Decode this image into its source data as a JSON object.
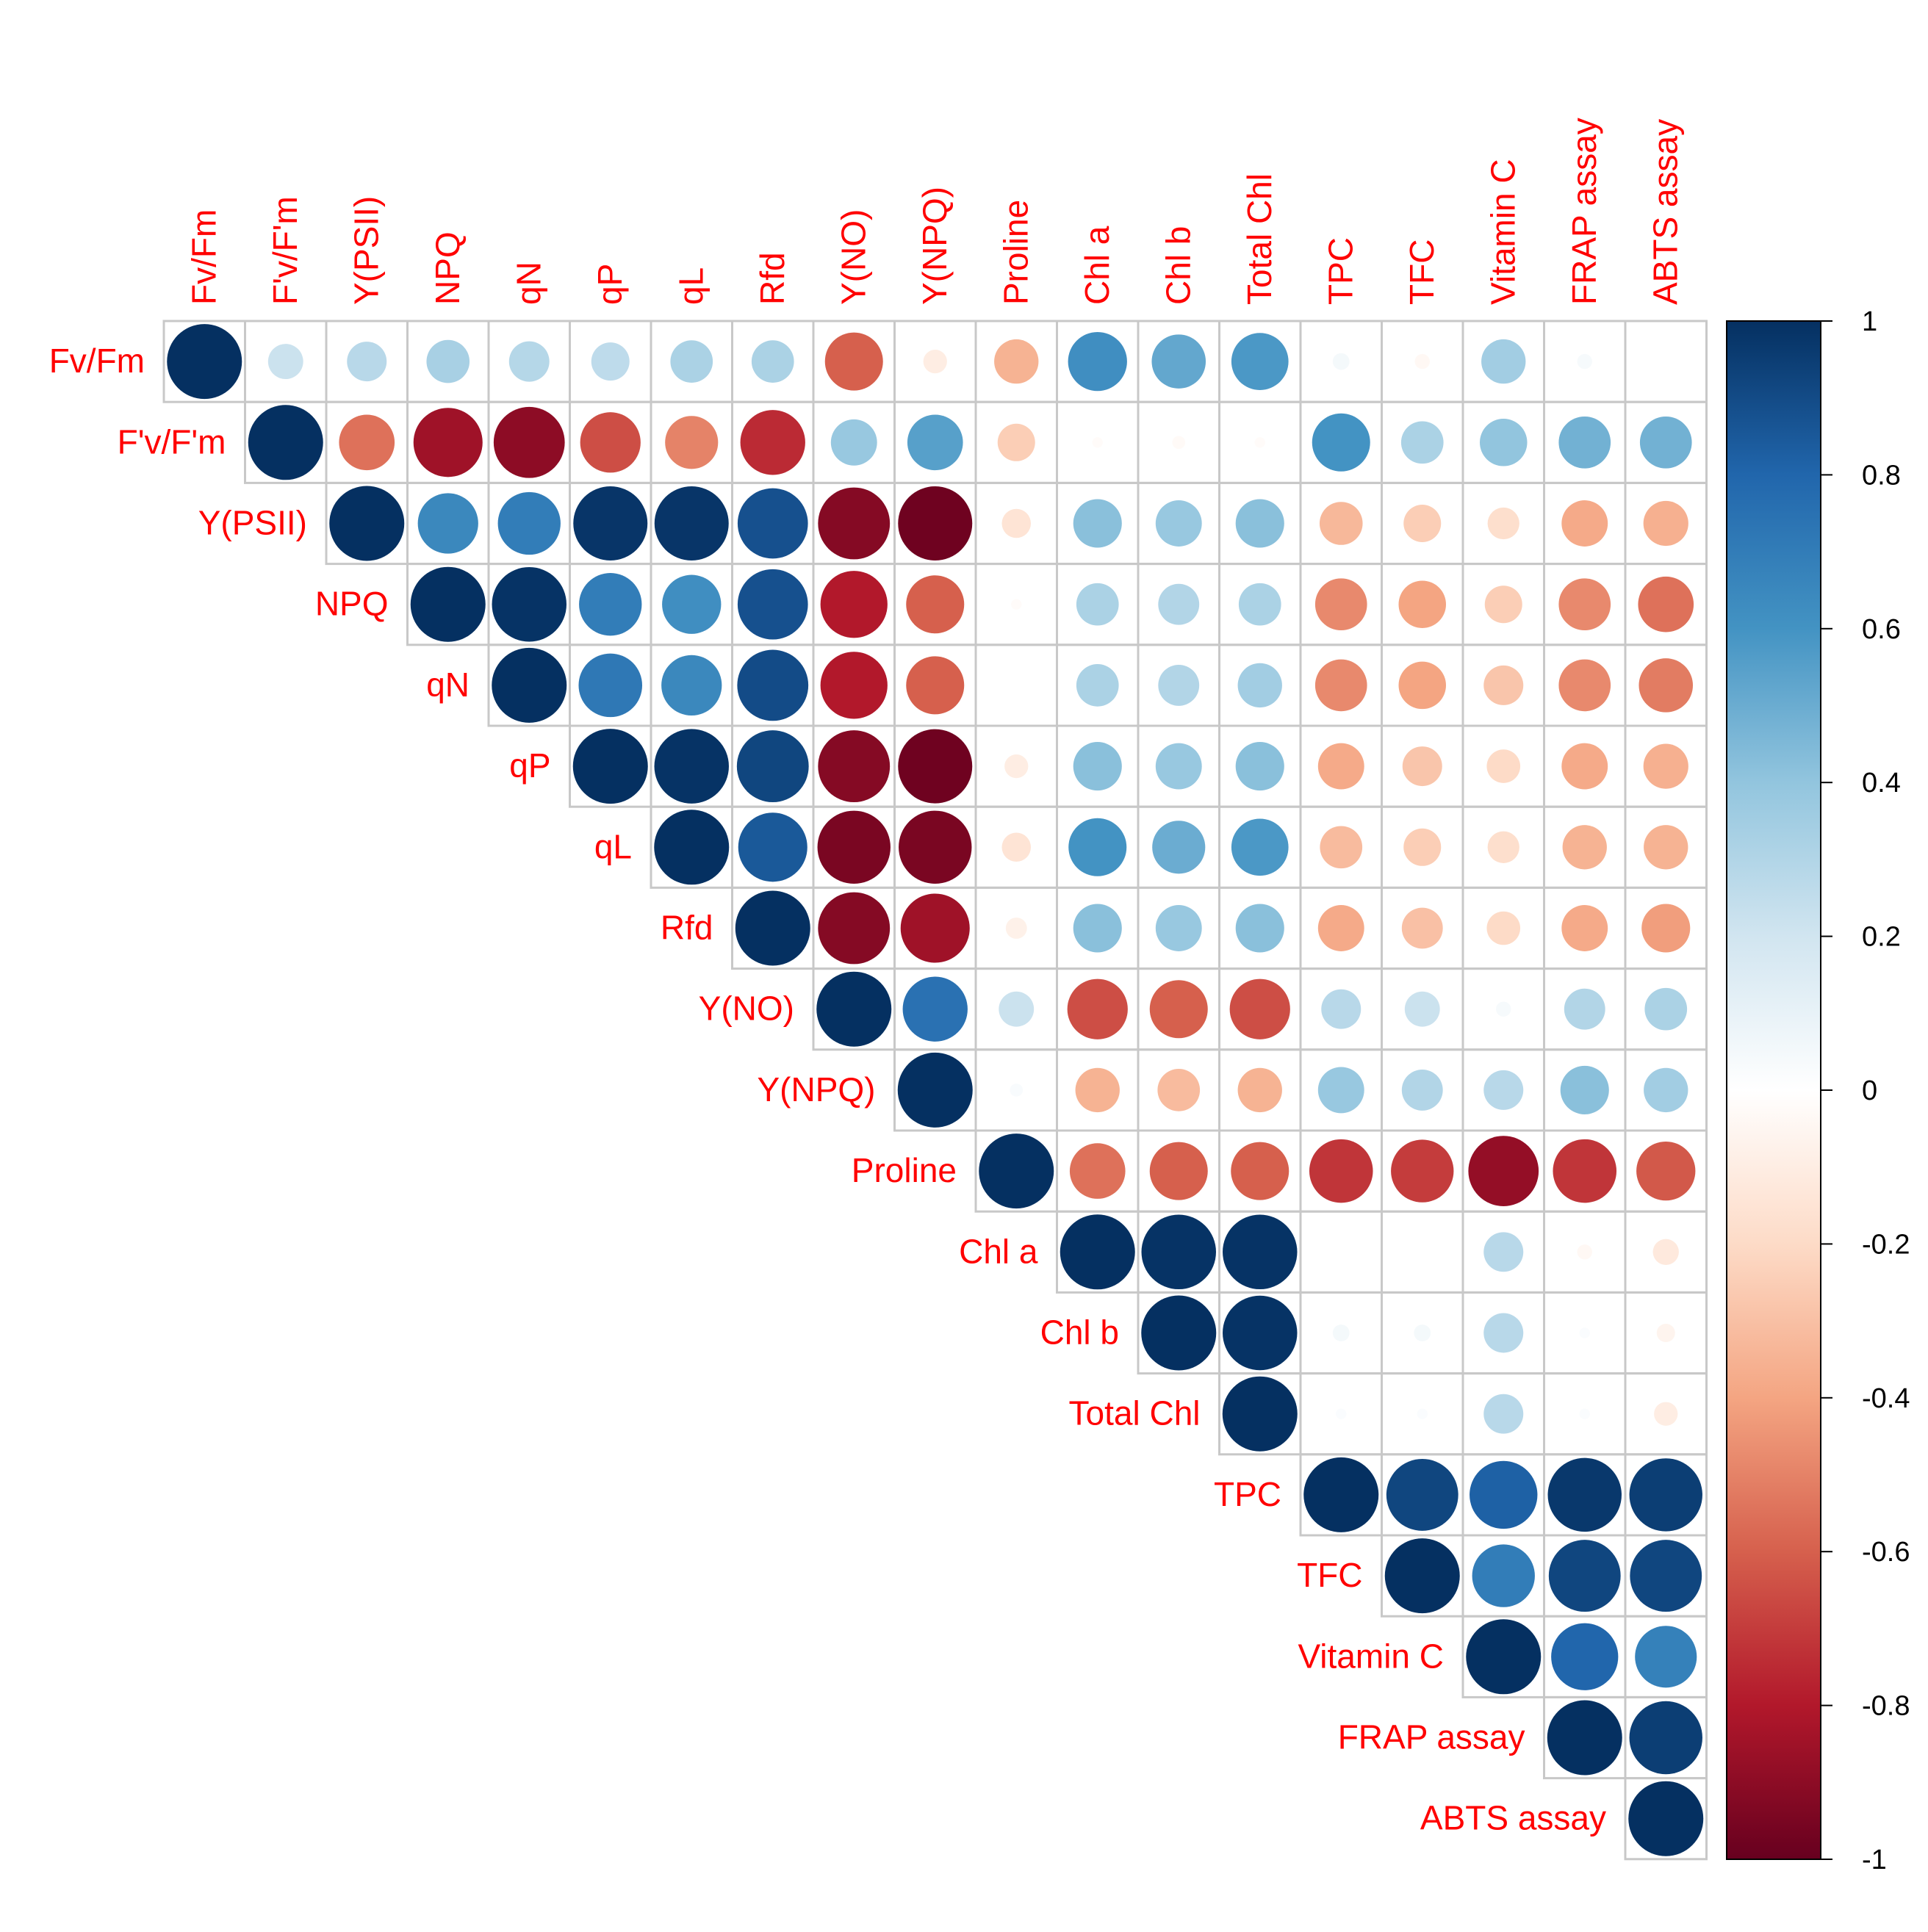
{
  "chart_data": {
    "type": "heatmap",
    "subtype": "correlation-circle-upper",
    "variables": [
      "Fv/Fm",
      "F'v/F'm",
      "Y(PSII)",
      "NPQ",
      "qN",
      "qP",
      "qL",
      "Rfd",
      "Y(NO)",
      "Y(NPQ)",
      "Proline",
      "Chl a",
      "Chl b",
      "Total Chl",
      "TPC",
      "TFC",
      "Vitamin C",
      "FRAP assay",
      "ABTS assay"
    ],
    "matrix": [
      [
        1,
        0.22,
        0.28,
        0.33,
        0.29,
        0.26,
        0.32,
        0.32,
        -0.6,
        -0.1,
        -0.35,
        0.62,
        0.52,
        0.58,
        0.05,
        -0.04,
        0.35,
        0.04,
        0.0
      ],
      [
        null,
        1,
        -0.55,
        -0.85,
        -0.9,
        -0.65,
        -0.5,
        -0.75,
        0.38,
        0.55,
        -0.25,
        -0.02,
        -0.03,
        -0.02,
        0.6,
        0.32,
        0.4,
        0.48,
        0.48
      ],
      [
        null,
        null,
        1,
        0.65,
        0.7,
        0.98,
        0.98,
        0.88,
        -0.92,
        -0.98,
        -0.15,
        0.42,
        0.38,
        0.42,
        -0.33,
        -0.25,
        -0.18,
        -0.38,
        -0.36
      ],
      [
        null,
        null,
        null,
        1,
        0.99,
        0.7,
        0.62,
        0.88,
        -0.8,
        -0.6,
        -0.02,
        0.32,
        0.3,
        0.32,
        -0.48,
        -0.4,
        -0.25,
        -0.48,
        -0.55
      ],
      [
        null,
        null,
        null,
        null,
        1,
        0.72,
        0.65,
        0.9,
        -0.8,
        -0.6,
        0.0,
        0.32,
        0.3,
        0.35,
        -0.48,
        -0.4,
        -0.28,
        -0.48,
        -0.52
      ],
      [
        null,
        null,
        null,
        null,
        null,
        1,
        0.99,
        0.92,
        -0.92,
        -0.98,
        -0.1,
        0.42,
        0.38,
        0.42,
        -0.38,
        -0.28,
        -0.2,
        -0.38,
        -0.36
      ],
      [
        null,
        null,
        null,
        null,
        null,
        null,
        1,
        0.85,
        -0.95,
        -0.95,
        -0.15,
        0.6,
        0.5,
        0.58,
        -0.32,
        -0.25,
        -0.18,
        -0.35,
        -0.35
      ],
      [
        null,
        null,
        null,
        null,
        null,
        null,
        null,
        1,
        -0.92,
        -0.85,
        -0.08,
        0.42,
        0.38,
        0.42,
        -0.38,
        -0.3,
        -0.2,
        -0.38,
        -0.42
      ],
      [
        null,
        null,
        null,
        null,
        null,
        null,
        null,
        null,
        1,
        0.75,
        0.22,
        -0.65,
        -0.6,
        -0.65,
        0.28,
        0.22,
        0.04,
        0.3,
        0.32
      ],
      [
        null,
        null,
        null,
        null,
        null,
        null,
        null,
        null,
        null,
        1,
        0.03,
        -0.35,
        -0.32,
        -0.35,
        0.38,
        0.3,
        0.28,
        0.42,
        0.35
      ],
      [
        null,
        null,
        null,
        null,
        null,
        null,
        null,
        null,
        null,
        null,
        1,
        -0.55,
        -0.6,
        -0.6,
        -0.72,
        -0.7,
        -0.88,
        -0.72,
        -0.62
      ],
      [
        null,
        null,
        null,
        null,
        null,
        null,
        null,
        null,
        null,
        null,
        null,
        1,
        0.99,
        0.99,
        0.0,
        0.0,
        0.28,
        -0.04,
        -0.12
      ],
      [
        null,
        null,
        null,
        null,
        null,
        null,
        null,
        null,
        null,
        null,
        null,
        null,
        1,
        0.99,
        0.05,
        0.05,
        0.28,
        0.02,
        -0.06
      ],
      [
        null,
        null,
        null,
        null,
        null,
        null,
        null,
        null,
        null,
        null,
        null,
        null,
        null,
        1,
        0.02,
        0.02,
        0.28,
        0.02,
        -0.1
      ],
      [
        null,
        null,
        null,
        null,
        null,
        null,
        null,
        null,
        null,
        null,
        null,
        null,
        null,
        null,
        1,
        0.92,
        0.82,
        0.97,
        0.95
      ],
      [
        null,
        null,
        null,
        null,
        null,
        null,
        null,
        null,
        null,
        null,
        null,
        null,
        null,
        null,
        null,
        1,
        0.7,
        0.92,
        0.92
      ],
      [
        null,
        null,
        null,
        null,
        null,
        null,
        null,
        null,
        null,
        null,
        null,
        null,
        null,
        null,
        null,
        null,
        1,
        0.8,
        0.68
      ],
      [
        null,
        null,
        null,
        null,
        null,
        null,
        null,
        null,
        null,
        null,
        null,
        null,
        null,
        null,
        null,
        null,
        null,
        1,
        0.95
      ],
      [
        null,
        null,
        null,
        null,
        null,
        null,
        null,
        null,
        null,
        null,
        null,
        null,
        null,
        null,
        null,
        null,
        null,
        null,
        1
      ]
    ],
    "colorbar": {
      "range": [
        -1,
        1
      ],
      "tick_labels": [
        "1",
        "0.8",
        "0.6",
        "0.4",
        "0.2",
        "0",
        "-0.2",
        "-0.4",
        "-0.6",
        "-0.8",
        "-1"
      ],
      "tick_values": [
        1,
        0.8,
        0.6,
        0.4,
        0.2,
        0,
        -0.2,
        -0.4,
        -0.6,
        -0.8,
        -1
      ]
    },
    "colors": {
      "palette": [
        "#67001F",
        "#B2182B",
        "#D6604D",
        "#F4A582",
        "#FDDBC7",
        "#FFFFFF",
        "#D1E5F0",
        "#92C5DE",
        "#4393C3",
        "#2166AC",
        "#053061"
      ],
      "label": "#FF0000",
      "grid": "#C8C8C8"
    }
  }
}
